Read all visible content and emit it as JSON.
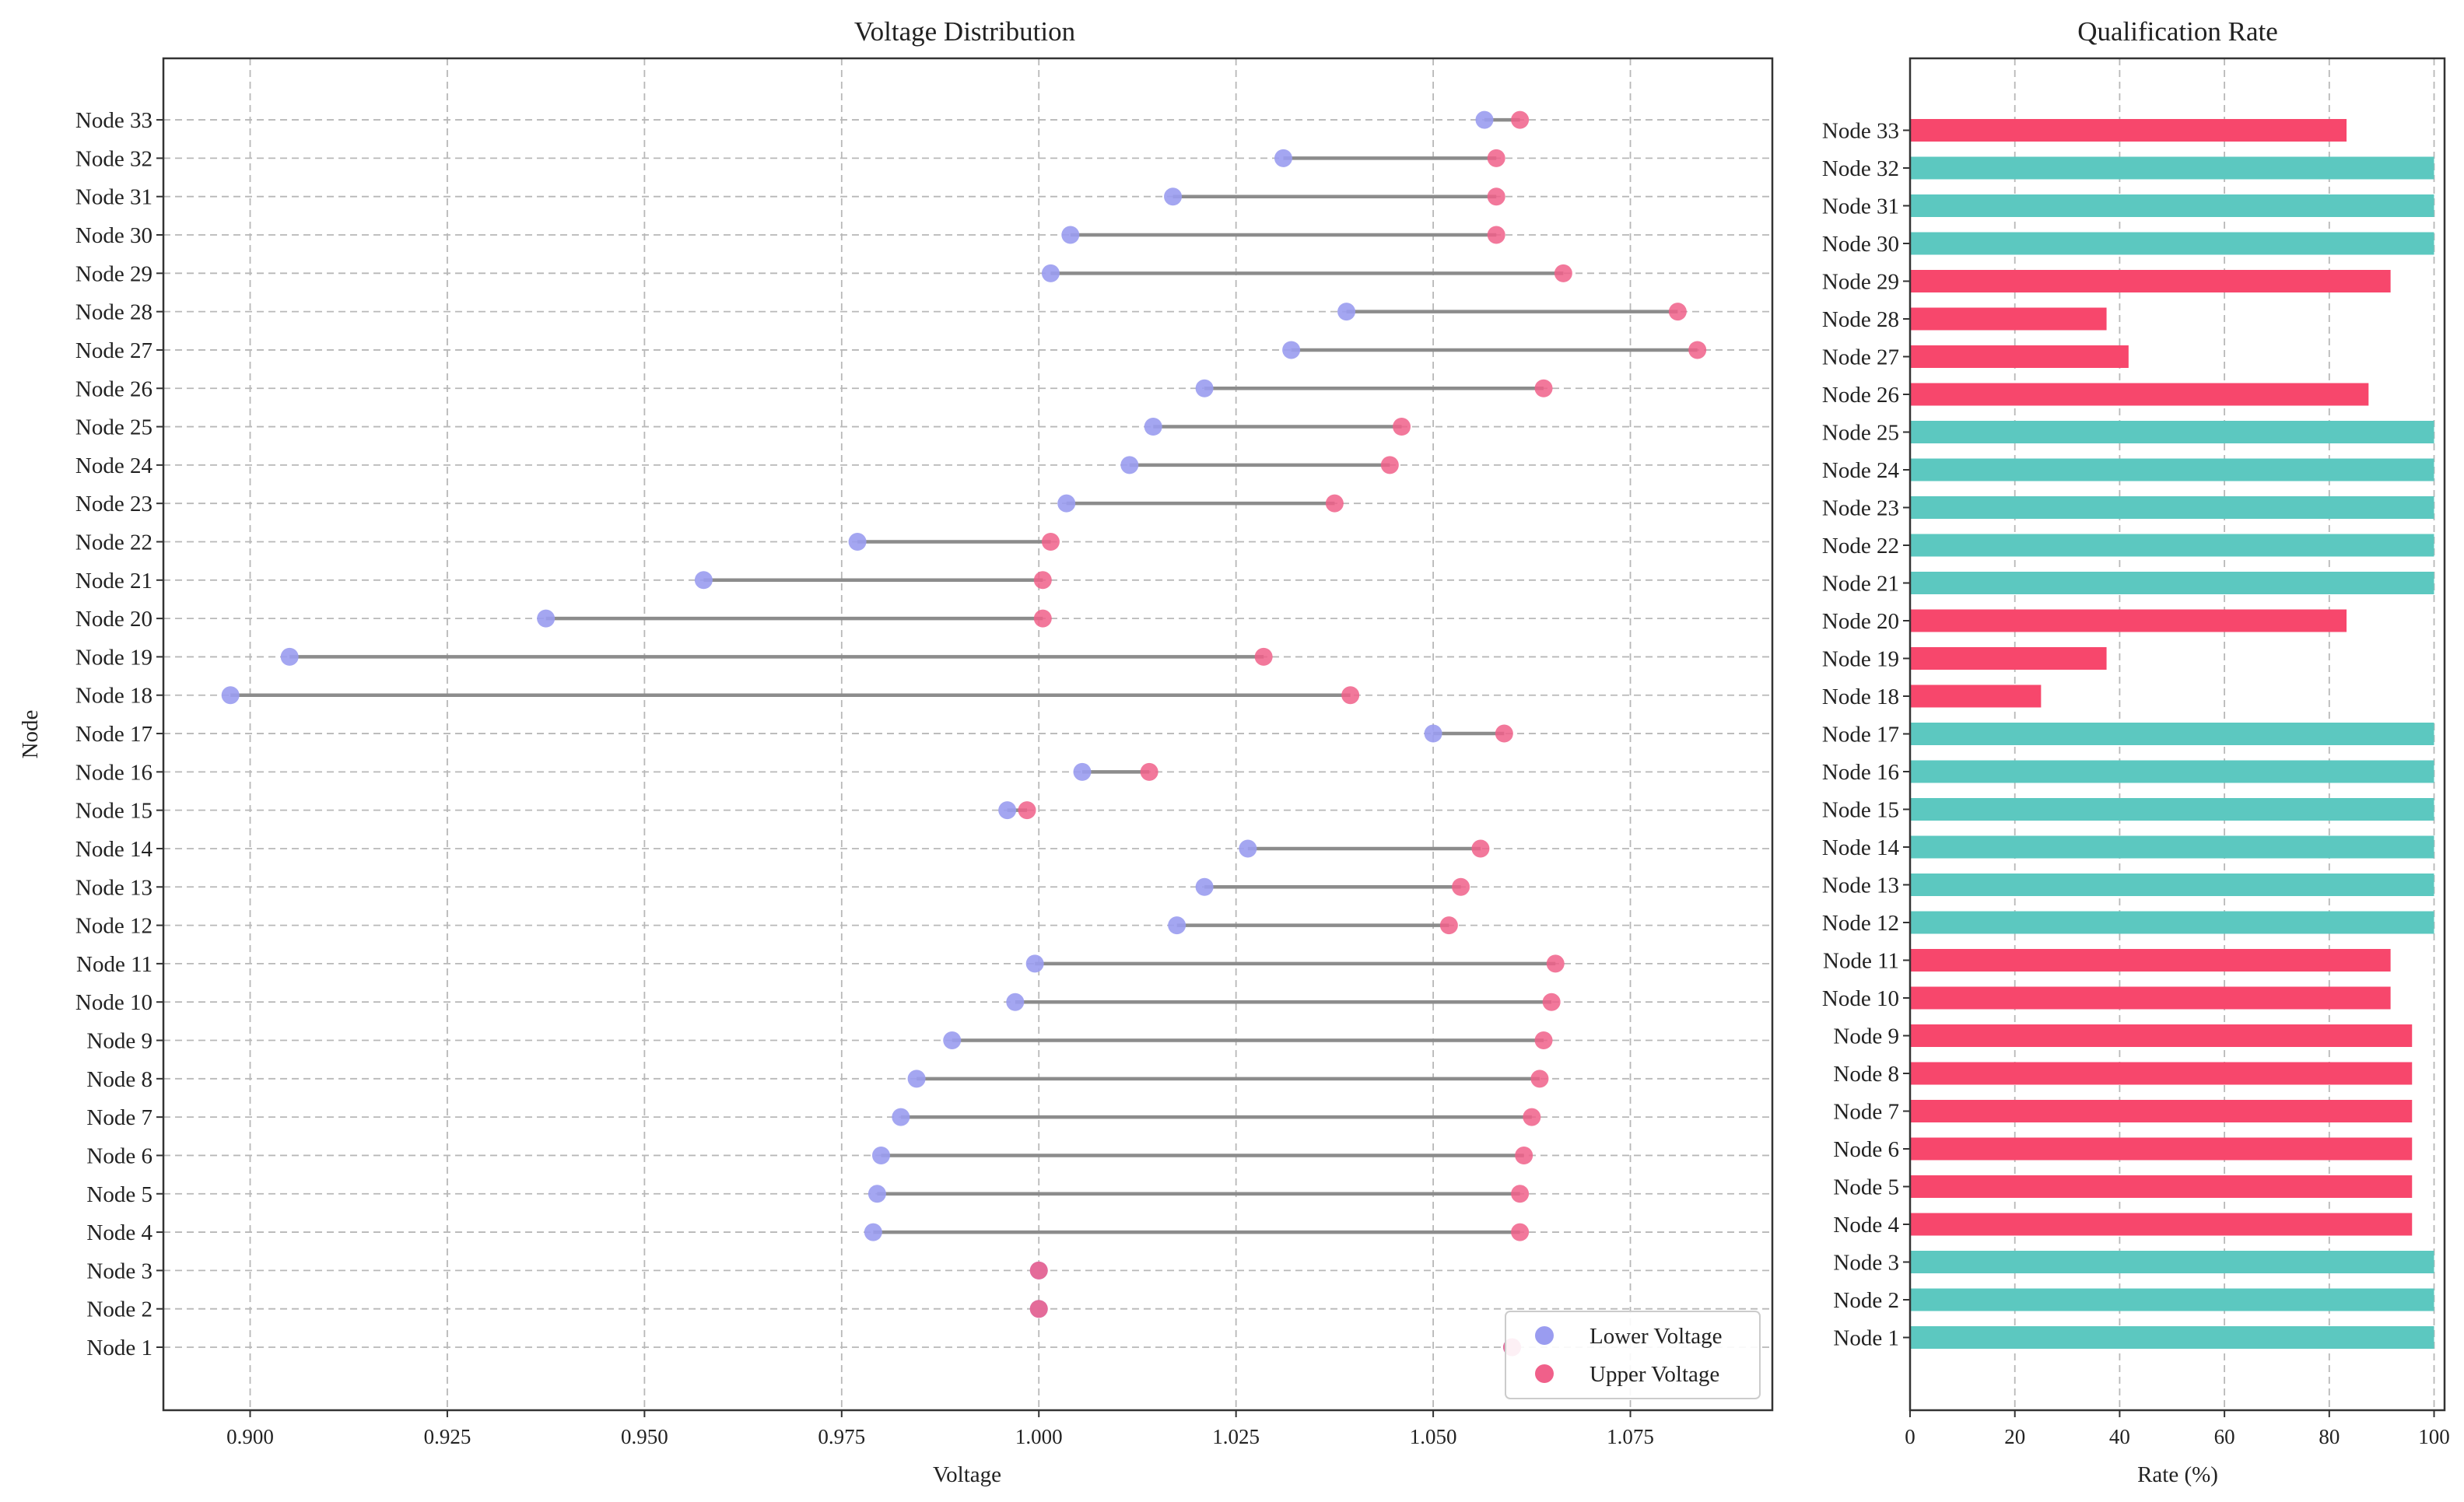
{
  "colors": {
    "lower": "#9a9cf0",
    "upper": "#f0608a",
    "range_line": "#8c8c8c",
    "qualified": "#5cc8c0",
    "unqualified": "#f7476c",
    "grid": "#b8b8b8",
    "axis": "#333333"
  },
  "chart_data": [
    {
      "type": "dumbbell",
      "title": "Voltage Distribution",
      "xlabel": "Voltage",
      "ylabel": "Node",
      "xlim": [
        0.889,
        1.093
      ],
      "xticks": [
        0.9,
        0.925,
        0.95,
        0.975,
        1.0,
        1.025,
        1.05,
        1.075
      ],
      "xtick_labels": [
        "0.900",
        "0.925",
        "0.950",
        "0.975",
        "1.000",
        "1.025",
        "1.050",
        "1.075"
      ],
      "grid": true,
      "legend": {
        "position": "bottom-right",
        "lower_label": "Lower Voltage",
        "upper_label": "Upper Voltage"
      },
      "categories": [
        "Node 1",
        "Node 2",
        "Node 3",
        "Node 4",
        "Node 5",
        "Node 6",
        "Node 7",
        "Node 8",
        "Node 9",
        "Node 10",
        "Node 11",
        "Node 12",
        "Node 13",
        "Node 14",
        "Node 15",
        "Node 16",
        "Node 17",
        "Node 18",
        "Node 19",
        "Node 20",
        "Node 21",
        "Node 22",
        "Node 23",
        "Node 24",
        "Node 25",
        "Node 26",
        "Node 27",
        "Node 28",
        "Node 29",
        "Node 30",
        "Node 31",
        "Node 32",
        "Node 33"
      ],
      "series": [
        {
          "name": "Lower Voltage",
          "values": [
            1.06,
            1.0,
            1.0,
            0.979,
            0.9795,
            0.98,
            0.9825,
            0.9845,
            0.989,
            0.997,
            0.9995,
            1.0175,
            1.021,
            1.0265,
            0.996,
            1.0055,
            1.05,
            0.8975,
            0.905,
            0.9375,
            0.9575,
            0.977,
            1.0035,
            1.0115,
            1.0145,
            1.021,
            1.032,
            1.039,
            1.0015,
            1.004,
            1.017,
            1.031,
            1.0565
          ]
        },
        {
          "name": "Upper Voltage",
          "values": [
            1.06,
            1.0,
            1.0,
            1.061,
            1.061,
            1.0615,
            1.0625,
            1.0635,
            1.064,
            1.065,
            1.0655,
            1.052,
            1.0535,
            1.056,
            0.9985,
            1.014,
            1.059,
            1.0395,
            1.0285,
            1.0005,
            1.0005,
            1.0015,
            1.0375,
            1.0445,
            1.046,
            1.064,
            1.0835,
            1.081,
            1.0665,
            1.058,
            1.058,
            1.058,
            1.061
          ]
        }
      ]
    },
    {
      "type": "bar",
      "orientation": "horizontal",
      "title": "Qualification Rate",
      "xlabel": "Rate (%)",
      "xlim": [
        0,
        102
      ],
      "xticks": [
        0,
        20,
        40,
        60,
        80,
        100
      ],
      "xtick_labels": [
        "0",
        "20",
        "40",
        "60",
        "80",
        "100"
      ],
      "grid": true,
      "categories": [
        "Node 1",
        "Node 2",
        "Node 3",
        "Node 4",
        "Node 5",
        "Node 6",
        "Node 7",
        "Node 8",
        "Node 9",
        "Node 10",
        "Node 11",
        "Node 12",
        "Node 13",
        "Node 14",
        "Node 15",
        "Node 16",
        "Node 17",
        "Node 18",
        "Node 19",
        "Node 20",
        "Node 21",
        "Node 22",
        "Node 23",
        "Node 24",
        "Node 25",
        "Node 26",
        "Node 27",
        "Node 28",
        "Node 29",
        "Node 30",
        "Node 31",
        "Node 32",
        "Node 33"
      ],
      "values": [
        100,
        100,
        100,
        95.8,
        95.8,
        95.8,
        95.8,
        95.8,
        95.8,
        91.7,
        91.7,
        100,
        100,
        100,
        100,
        100,
        100,
        25,
        37.5,
        83.3,
        100,
        100,
        100,
        100,
        100,
        87.5,
        41.7,
        37.5,
        91.7,
        100,
        100,
        100,
        83.3
      ]
    }
  ]
}
